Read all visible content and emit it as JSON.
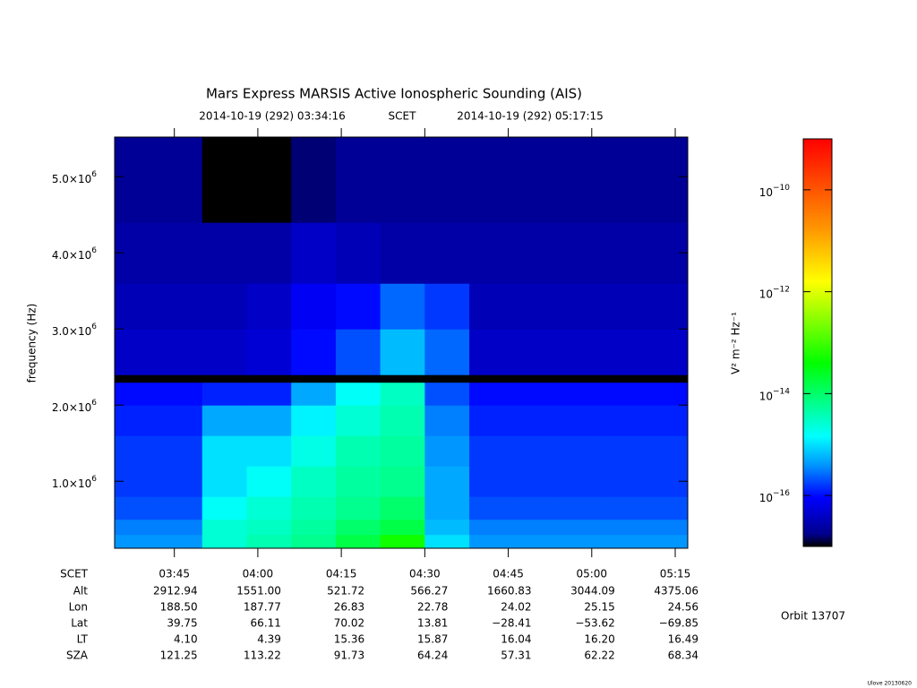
{
  "chart_data": {
    "type": "heatmap",
    "title": "Mars Express MARSIS Active Ionospheric Sounding (AIS)",
    "subtitle_start": "2014-10-19 (292) 03:34:16",
    "subtitle_mid": "SCET",
    "subtitle_end": "2014-10-19 (292) 05:17:15",
    "y_label": "frequency (Hz)",
    "colorbar_label": "V² m⁻² Hz⁻¹",
    "xlim": [
      214.27,
      317.25
    ],
    "xticks": [
      {
        "value": 225,
        "label": "03:45"
      },
      {
        "value": 240,
        "label": "04:00"
      },
      {
        "value": 255,
        "label": "04:15"
      },
      {
        "value": 270,
        "label": "04:30"
      },
      {
        "value": 285,
        "label": "04:45"
      },
      {
        "value": 300,
        "label": "05:00"
      },
      {
        "value": 315,
        "label": "05:15"
      }
    ],
    "ylim": [
      120000,
      5520000
    ],
    "yticks": [
      {
        "value": 1000000,
        "label": "1.0×10",
        "exponent": "6"
      },
      {
        "value": 2000000,
        "label": "2.0×10",
        "exponent": "6"
      },
      {
        "value": 3000000,
        "label": "3.0×10",
        "exponent": "6"
      },
      {
        "value": 4000000,
        "label": "4.0×10",
        "exponent": "6"
      },
      {
        "value": 5000000,
        "label": "5.0×10",
        "exponent": "6"
      }
    ],
    "zlog": true,
    "zlim": [
      -17,
      -9
    ],
    "zticks": [
      {
        "value": -10,
        "label": "10",
        "exponent": "−10"
      },
      {
        "value": -12,
        "label": "10",
        "exponent": "−12"
      },
      {
        "value": -14,
        "label": "10",
        "exponent": "−14"
      },
      {
        "value": -16,
        "label": "10",
        "exponent": "−16"
      }
    ],
    "xbins": [
      214.27,
      222,
      230,
      238,
      246,
      254,
      262,
      270,
      278,
      286,
      294,
      302,
      317.25
    ],
    "ybins": [
      120000,
      300000,
      500000,
      800000,
      1200000,
      1600000,
      2000000,
      2300000,
      2400000,
      3000000,
      3600000,
      4400000,
      5520000
    ],
    "z": [
      [
        -15.4,
        -15.4,
        -14.6,
        -14.4,
        -14.2,
        -13.8,
        -13.3,
        -15.0,
        -15.4,
        -15.4,
        -15.4,
        -15.4
      ],
      [
        -15.5,
        -15.5,
        -14.6,
        -14.5,
        -14.3,
        -14.0,
        -13.8,
        -15.2,
        -15.5,
        -15.5,
        -15.5,
        -15.5
      ],
      [
        -15.7,
        -15.7,
        -14.8,
        -14.6,
        -14.4,
        -14.2,
        -14.0,
        -15.3,
        -15.7,
        -15.7,
        -15.7,
        -15.7
      ],
      [
        -15.8,
        -15.8,
        -15.0,
        -14.8,
        -14.5,
        -14.3,
        -14.2,
        -15.3,
        -15.8,
        -15.8,
        -15.8,
        -15.8
      ],
      [
        -15.8,
        -15.8,
        -15.0,
        -15.0,
        -14.7,
        -14.4,
        -14.3,
        -15.4,
        -15.8,
        -15.8,
        -15.8,
        -15.8
      ],
      [
        -15.9,
        -15.9,
        -15.3,
        -15.3,
        -14.9,
        -14.6,
        -14.4,
        -15.5,
        -15.9,
        -15.9,
        -15.9,
        -15.9
      ],
      [
        -16.0,
        -16.0,
        -15.9,
        -15.9,
        -15.3,
        -14.8,
        -14.5,
        -15.7,
        -16.0,
        -16.0,
        -16.0,
        -16.0
      ],
      [
        -17.0,
        -17.0,
        -17.0,
        -17.0,
        -17.0,
        -17.0,
        -17.0,
        -17.0,
        -17.0,
        -17.0,
        -17.0,
        -17.0
      ],
      [
        -16.4,
        -16.4,
        -16.4,
        -16.3,
        -16.0,
        -15.7,
        -15.2,
        -15.6,
        -16.4,
        -16.4,
        -16.4,
        -16.4
      ],
      [
        -16.5,
        -16.5,
        -16.5,
        -16.4,
        -16.1,
        -16.0,
        -15.6,
        -15.8,
        -16.5,
        -16.5,
        -16.5,
        -16.5
      ],
      [
        -16.6,
        -16.6,
        -16.6,
        -16.6,
        -16.4,
        -16.5,
        -16.6,
        -16.6,
        -16.6,
        -16.6,
        -16.6,
        -16.6
      ],
      [
        -16.7,
        -16.7,
        -17.0,
        -17.0,
        -16.8,
        -16.7,
        -16.7,
        -16.7,
        -16.7,
        -16.7,
        -16.7,
        -16.7
      ]
    ]
  },
  "table": {
    "rows": [
      {
        "label": "SCET"
      },
      {
        "label": "Alt",
        "values": [
          "2912.94",
          "1551.00",
          "521.72",
          "566.27",
          "1660.83",
          "3044.09",
          "4375.06"
        ]
      },
      {
        "label": "Lon",
        "values": [
          "188.50",
          "187.77",
          "26.83",
          "22.78",
          "24.02",
          "25.15",
          "24.56"
        ]
      },
      {
        "label": "Lat",
        "values": [
          "39.75",
          "66.11",
          "70.02",
          "13.81",
          "−28.41",
          "−53.62",
          "−69.85"
        ]
      },
      {
        "label": "LT",
        "values": [
          "4.10",
          "4.39",
          "15.36",
          "15.87",
          "16.04",
          "16.20",
          "16.49"
        ]
      },
      {
        "label": "SZA",
        "values": [
          "121.25",
          "113.22",
          "91.73",
          "64.24",
          "57.31",
          "62.22",
          "68.34"
        ]
      }
    ]
  },
  "orbit_label": "Orbit 13707",
  "credit": "Ulove 20130620"
}
